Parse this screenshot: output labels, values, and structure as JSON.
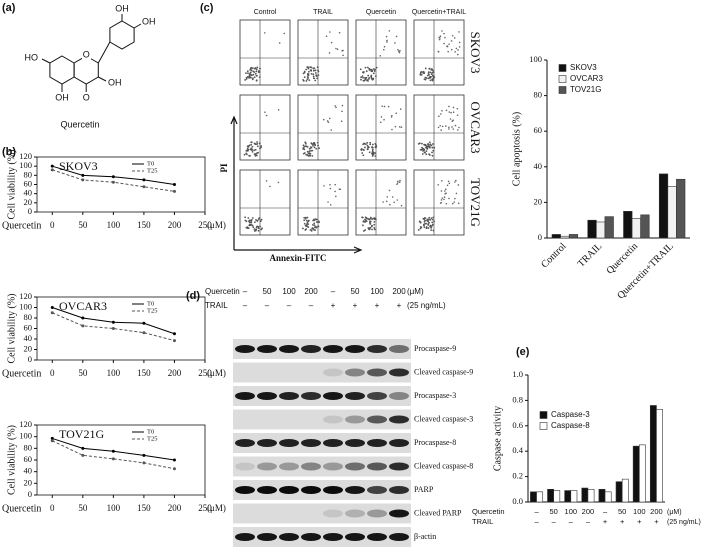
{
  "panel_labels": [
    "(a)",
    "(b)",
    "(c)",
    "(d)",
    "(e)"
  ],
  "structure": {
    "substituents": [
      "HO",
      "OH",
      "O",
      "OH",
      "OH",
      "OH"
    ],
    "ring_oxygen": "O",
    "name": "Quercetin"
  },
  "flow": {
    "columns": [
      "Control",
      "TRAIL",
      "Quercetin",
      "Quercetin+TRAIL"
    ],
    "rows": [
      "SKOV3",
      "OVCAR3",
      "TOV21G"
    ],
    "y_label": "PI",
    "x_label": "Annexin-FITC"
  },
  "blot": {
    "quercetin_row": {
      "label": "Quercetin",
      "cells": [
        "–",
        "50",
        "100",
        "200",
        "–",
        "50",
        "100",
        "200"
      ],
      "unit": "(μM)"
    },
    "trail_row": {
      "label": "TRAIL",
      "cells": [
        "–",
        "–",
        "–",
        "–",
        "+",
        "+",
        "+",
        "+"
      ],
      "unit": "(25 ng/mL)"
    },
    "bands": [
      "Procaspase-9",
      "Cleaved caspase-9",
      "Procaspase-3",
      "Cleaved caspase-3",
      "Procaspase-8",
      "Cleaved caspase-8",
      "PARP",
      "Cleaved PARP",
      "β-actin"
    ]
  },
  "chart_data": [
    {
      "type": "line",
      "title": "SKOV3",
      "x": [
        0,
        50,
        100,
        150,
        200
      ],
      "series": [
        {
          "name": "T0",
          "color": "#000000",
          "values": [
            100,
            80,
            77,
            70,
            60
          ]
        },
        {
          "name": "T25",
          "color": "#555555",
          "values": [
            92,
            70,
            65,
            55,
            45
          ]
        }
      ],
      "xlim": [
        -25,
        250
      ],
      "xticks": [
        0,
        50,
        100,
        150,
        200,
        250
      ],
      "ylim": [
        0,
        120
      ],
      "yticks": [
        0,
        20,
        40,
        60,
        80,
        100,
        120
      ],
      "y_label": "Cell viability (%)",
      "x_label": "Quercetin",
      "x_unit": "(μM)"
    },
    {
      "type": "line",
      "title": "OVCAR3",
      "x": [
        0,
        50,
        100,
        150,
        200
      ],
      "series": [
        {
          "name": "T0",
          "color": "#000000",
          "values": [
            100,
            80,
            72,
            70,
            50
          ]
        },
        {
          "name": "T25",
          "color": "#555555",
          "values": [
            90,
            65,
            60,
            52,
            37
          ]
        }
      ],
      "xlim": [
        -25,
        250
      ],
      "xticks": [
        0,
        50,
        100,
        150,
        200,
        250
      ],
      "ylim": [
        0,
        120
      ],
      "yticks": [
        0,
        20,
        40,
        60,
        80,
        100,
        120
      ],
      "y_label": "Cell viability (%)",
      "x_label": "Quercetin",
      "x_unit": "(μM)"
    },
    {
      "type": "line",
      "title": "TOV21G",
      "x": [
        0,
        50,
        100,
        150,
        200
      ],
      "series": [
        {
          "name": "T0",
          "color": "#000000",
          "values": [
            97,
            80,
            75,
            68,
            60
          ]
        },
        {
          "name": "T25",
          "color": "#555555",
          "values": [
            93,
            68,
            62,
            55,
            45
          ]
        }
      ],
      "xlim": [
        -25,
        250
      ],
      "xticks": [
        0,
        50,
        100,
        150,
        200,
        250
      ],
      "ylim": [
        0,
        120
      ],
      "yticks": [
        0,
        20,
        40,
        60,
        80,
        100,
        120
      ],
      "y_label": "Cell viability (%)",
      "x_label": "Quercetin",
      "x_unit": "(μM)"
    },
    {
      "type": "bar",
      "categories": [
        "Control",
        "TRAIL",
        "Quercetin",
        "Quercetin+TRAIL"
      ],
      "series": [
        {
          "name": "SKOV3",
          "color": "#111111",
          "values": [
            2,
            10,
            15,
            36
          ]
        },
        {
          "name": "OVCAR3",
          "color": "#f2f2f2",
          "values": [
            1,
            9,
            11,
            29
          ]
        },
        {
          "name": "TOV21G",
          "color": "#555555",
          "values": [
            2,
            12,
            13,
            33
          ]
        }
      ],
      "ylim": [
        0,
        100
      ],
      "yticks": [
        0,
        20,
        40,
        60,
        80,
        100
      ],
      "y_label": "Cell apoptosis (%)"
    },
    {
      "type": "bar",
      "categories": [
        null,
        null,
        null,
        null,
        null,
        null,
        null,
        null
      ],
      "series": [
        {
          "name": "Caspase-3",
          "color": "#111111",
          "values": [
            0.08,
            0.1,
            0.09,
            0.11,
            0.1,
            0.16,
            0.44,
            0.76
          ]
        },
        {
          "name": "Caspase-8",
          "color": "#ffffff",
          "values": [
            0.08,
            0.09,
            0.09,
            0.1,
            0.08,
            0.18,
            0.45,
            0.73
          ]
        }
      ],
      "ylim": [
        0,
        1
      ],
      "yticks": [
        {
          "value": 0,
          "label": "0.0"
        },
        0.2,
        0.4,
        0.6,
        0.8,
        {
          "value": 1,
          "label": "1.0"
        }
      ],
      "y_label": "Caspase activity",
      "x_table": [
        {
          "label": "Quercetin",
          "cells": [
            "–",
            "50",
            "100",
            "200",
            "–",
            "50",
            "100",
            "200"
          ],
          "unit": "(μM)"
        },
        {
          "label": "TRAIL",
          "cells": [
            "–",
            "–",
            "–",
            "–",
            "+",
            "+",
            "+",
            "+"
          ],
          "unit": "(25 ng/mL)"
        }
      ]
    }
  ]
}
